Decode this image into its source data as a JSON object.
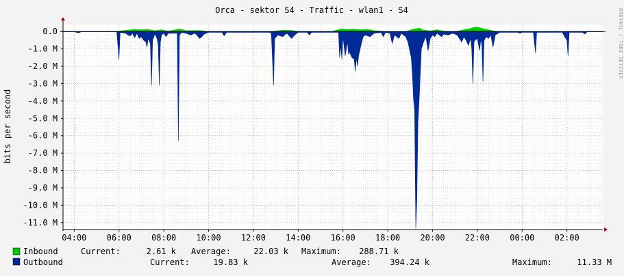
{
  "chart_data": {
    "type": "area",
    "title": "Orca - sektor S4 - Traffic - wlan1 - S4",
    "ylabel": "bits per second",
    "watermark": "RRDTOOL / TOBI OETIKER",
    "x_ticks": [
      "04:00",
      "06:00",
      "08:00",
      "10:00",
      "12:00",
      "14:00",
      "16:00",
      "18:00",
      "20:00",
      "22:00",
      "00:00",
      "02:00"
    ],
    "y_ticks": [
      "0.0",
      "-1.0 M",
      "-2.0 M",
      "-3.0 M",
      "-4.0 M",
      "-5.0 M",
      "-6.0 M",
      "-7.0 M",
      "-8.0 M",
      "-9.0 M",
      "-10.0 M",
      "-11.0 M"
    ],
    "y_tick_values": [
      0,
      -1,
      -2,
      -3,
      -4,
      -5,
      -6,
      -7,
      -8,
      -9,
      -10,
      -11
    ],
    "ylim": [
      -11.4,
      0.4
    ],
    "xlim_hours": [
      3.5,
      27.6
    ],
    "y_unit": "M bits per second",
    "grid": true,
    "series": [
      {
        "name": "Inbound",
        "color": "#00cc00",
        "stats": {
          "current_label": "Current:",
          "current": "2.61 k",
          "average_label": "Average:",
          "average": "22.03 k",
          "maximum_label": "Maximum:",
          "maximum": "288.71 k"
        },
        "points": [
          [
            3.5,
            0.0
          ],
          [
            5.8,
            0.0
          ],
          [
            6.4,
            0.08
          ],
          [
            6.7,
            0.12
          ],
          [
            7.0,
            0.1
          ],
          [
            7.3,
            0.12
          ],
          [
            7.6,
            0.05
          ],
          [
            7.9,
            0.1
          ],
          [
            8.2,
            0.02
          ],
          [
            8.7,
            0.15
          ],
          [
            9.0,
            0.05
          ],
          [
            9.6,
            0.06
          ],
          [
            10.0,
            0.0
          ],
          [
            12.8,
            0.0
          ],
          [
            13.1,
            0.05
          ],
          [
            13.4,
            0.08
          ],
          [
            13.7,
            0.06
          ],
          [
            14.0,
            0.0
          ],
          [
            15.5,
            0.0
          ],
          [
            15.9,
            0.15
          ],
          [
            16.2,
            0.12
          ],
          [
            16.5,
            0.14
          ],
          [
            16.8,
            0.1
          ],
          [
            17.1,
            0.13
          ],
          [
            17.4,
            0.05
          ],
          [
            18.0,
            0.0
          ],
          [
            18.8,
            0.0
          ],
          [
            19.1,
            0.12
          ],
          [
            19.4,
            0.2
          ],
          [
            19.6,
            0.08
          ],
          [
            19.9,
            0.04
          ],
          [
            20.2,
            0.1
          ],
          [
            20.5,
            0.03
          ],
          [
            21.0,
            0.0
          ],
          [
            21.4,
            0.1
          ],
          [
            21.7,
            0.18
          ],
          [
            21.9,
            0.26
          ],
          [
            22.1,
            0.22
          ],
          [
            22.4,
            0.12
          ],
          [
            22.7,
            0.05
          ],
          [
            23.0,
            0.0
          ],
          [
            27.6,
            0.0
          ]
        ]
      },
      {
        "name": "Outbound",
        "color": "#002a97",
        "stats": {
          "current_label": "Current:",
          "current": "19.83 k",
          "average_label": "Average:",
          "average": "394.24 k",
          "maximum_label": "Maximum:",
          "maximum": "11.33 M"
        },
        "points": [
          [
            3.5,
            -0.02
          ],
          [
            4.0,
            -0.02
          ],
          [
            4.2,
            -0.08
          ],
          [
            4.3,
            -0.02
          ],
          [
            5.0,
            -0.02
          ],
          [
            5.9,
            -0.02
          ],
          [
            6.0,
            -1.6
          ],
          [
            6.05,
            -0.05
          ],
          [
            6.3,
            -0.1
          ],
          [
            6.4,
            -0.2
          ],
          [
            6.5,
            -0.25
          ],
          [
            6.6,
            -0.1
          ],
          [
            6.7,
            -0.35
          ],
          [
            6.8,
            -0.1
          ],
          [
            6.9,
            -0.4
          ],
          [
            7.0,
            -0.3
          ],
          [
            7.1,
            -0.5
          ],
          [
            7.2,
            -0.6
          ],
          [
            7.25,
            -0.9
          ],
          [
            7.3,
            -0.4
          ],
          [
            7.4,
            -0.7
          ],
          [
            7.45,
            -3.1
          ],
          [
            7.5,
            -0.5
          ],
          [
            7.6,
            -0.15
          ],
          [
            7.7,
            -0.4
          ],
          [
            7.75,
            -0.8
          ],
          [
            7.8,
            -3.1
          ],
          [
            7.85,
            -0.6
          ],
          [
            7.9,
            -0.2
          ],
          [
            8.0,
            -0.1
          ],
          [
            8.1,
            -0.3
          ],
          [
            8.2,
            -0.1
          ],
          [
            8.6,
            -0.1
          ],
          [
            8.65,
            -6.3
          ],
          [
            8.7,
            -0.2
          ],
          [
            8.8,
            -0.05
          ],
          [
            9.0,
            -0.1
          ],
          [
            9.2,
            -0.2
          ],
          [
            9.4,
            -0.1
          ],
          [
            9.6,
            -0.4
          ],
          [
            9.7,
            -0.3
          ],
          [
            9.8,
            -0.15
          ],
          [
            9.9,
            -0.1
          ],
          [
            10.0,
            -0.05
          ],
          [
            10.6,
            -0.05
          ],
          [
            10.7,
            -0.25
          ],
          [
            10.8,
            -0.05
          ],
          [
            12.7,
            -0.05
          ],
          [
            12.8,
            -0.1
          ],
          [
            12.9,
            -3.1
          ],
          [
            12.95,
            -0.4
          ],
          [
            13.1,
            -0.2
          ],
          [
            13.3,
            -0.3
          ],
          [
            13.5,
            -0.1
          ],
          [
            13.7,
            -0.4
          ],
          [
            13.85,
            -0.2
          ],
          [
            14.0,
            -0.05
          ],
          [
            14.4,
            -0.05
          ],
          [
            14.5,
            -0.2
          ],
          [
            14.6,
            -0.05
          ],
          [
            15.8,
            -0.05
          ],
          [
            15.85,
            -1.5
          ],
          [
            15.9,
            -0.8
          ],
          [
            15.95,
            -1.6
          ],
          [
            16.0,
            -0.3
          ],
          [
            16.1,
            -1.4
          ],
          [
            16.2,
            -0.6
          ],
          [
            16.25,
            -1.3
          ],
          [
            16.3,
            -1.2
          ],
          [
            16.4,
            -1.5
          ],
          [
            16.5,
            -1.6
          ],
          [
            16.55,
            -2.3
          ],
          [
            16.6,
            -1.5
          ],
          [
            16.65,
            -2.0
          ],
          [
            16.7,
            -1.4
          ],
          [
            16.8,
            -0.8
          ],
          [
            16.9,
            -0.3
          ],
          [
            17.0,
            -0.2
          ],
          [
            17.2,
            -0.3
          ],
          [
            17.4,
            -0.1
          ],
          [
            17.7,
            -0.05
          ],
          [
            17.8,
            -0.3
          ],
          [
            17.9,
            -0.05
          ],
          [
            18.1,
            -0.1
          ],
          [
            18.2,
            -0.7
          ],
          [
            18.3,
            -0.2
          ],
          [
            18.5,
            -0.4
          ],
          [
            18.6,
            -0.1
          ],
          [
            18.8,
            -0.3
          ],
          [
            18.9,
            -0.6
          ],
          [
            19.0,
            -1.2
          ],
          [
            19.05,
            -1.5
          ],
          [
            19.1,
            -2.5
          ],
          [
            19.15,
            -3.9
          ],
          [
            19.2,
            -4.5
          ],
          [
            19.25,
            -11.33
          ],
          [
            19.3,
            -9.7
          ],
          [
            19.35,
            -5.2
          ],
          [
            19.4,
            -4.0
          ],
          [
            19.45,
            -2.5
          ],
          [
            19.5,
            -1.0
          ],
          [
            19.6,
            -0.6
          ],
          [
            19.7,
            -0.3
          ],
          [
            19.8,
            -1.1
          ],
          [
            19.9,
            -0.4
          ],
          [
            20.0,
            -0.2
          ],
          [
            20.1,
            -0.3
          ],
          [
            20.2,
            -0.1
          ],
          [
            20.4,
            -0.3
          ],
          [
            20.5,
            -0.15
          ],
          [
            20.7,
            -0.2
          ],
          [
            20.9,
            -0.1
          ],
          [
            21.1,
            -0.2
          ],
          [
            21.2,
            -0.4
          ],
          [
            21.3,
            -0.6
          ],
          [
            21.4,
            -0.3
          ],
          [
            21.5,
            -0.5
          ],
          [
            21.6,
            -0.8
          ],
          [
            21.7,
            -0.4
          ],
          [
            21.75,
            -1.0
          ],
          [
            21.8,
            -3.0
          ],
          [
            21.85,
            -0.6
          ],
          [
            21.9,
            -0.5
          ],
          [
            22.0,
            -0.4
          ],
          [
            22.1,
            -1.1
          ],
          [
            22.15,
            -0.5
          ],
          [
            22.2,
            -0.7
          ],
          [
            22.25,
            -2.9
          ],
          [
            22.3,
            -0.5
          ],
          [
            22.4,
            -0.3
          ],
          [
            22.5,
            -0.4
          ],
          [
            22.6,
            -0.2
          ],
          [
            22.7,
            -0.9
          ],
          [
            22.8,
            -0.2
          ],
          [
            23.0,
            -0.05
          ],
          [
            23.8,
            -0.05
          ],
          [
            23.9,
            -0.1
          ],
          [
            24.0,
            -0.05
          ],
          [
            24.5,
            -0.05
          ],
          [
            24.6,
            -1.25
          ],
          [
            24.65,
            -0.05
          ],
          [
            25.8,
            -0.05
          ],
          [
            25.9,
            -0.3
          ],
          [
            26.0,
            -0.5
          ],
          [
            26.05,
            -1.4
          ],
          [
            26.1,
            -0.05
          ],
          [
            26.7,
            -0.05
          ],
          [
            26.8,
            -0.15
          ],
          [
            26.9,
            -0.02
          ],
          [
            27.6,
            -0.02
          ]
        ]
      }
    ]
  }
}
